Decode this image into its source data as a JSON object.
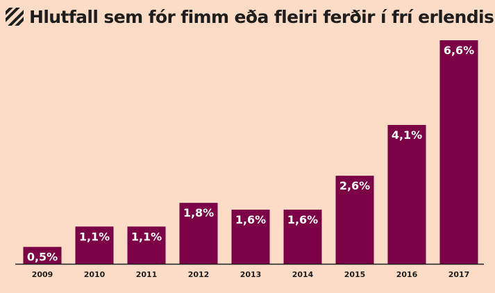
{
  "title": "Hlutfall sem fór fimm eða fleiri ferðir í frí erlendis",
  "colors": {
    "background": "#fcdcc6",
    "bar": "#7b0046",
    "bar_label": "#ffffff",
    "text": "#1e1e1e",
    "axis": "#1e1e1e"
  },
  "icon": "hatched-square-icon",
  "chart_data": {
    "type": "bar",
    "title": "Hlutfall sem fór fimm eða fleiri ferðir í frí erlendis",
    "categories": [
      "2009",
      "2010",
      "2011",
      "2012",
      "2013",
      "2014",
      "2015",
      "2016",
      "2017"
    ],
    "values": [
      0.5,
      1.1,
      1.1,
      1.8,
      1.6,
      1.6,
      2.6,
      4.1,
      6.6
    ],
    "data_labels": [
      "0,5%",
      "1,1%",
      "1,1%",
      "1,8%",
      "1,6%",
      "1,6%",
      "2,6%",
      "4,1%",
      "6,6%"
    ],
    "unit": "%",
    "xlabel": "",
    "ylabel": "",
    "ylim": [
      0,
      6.6
    ],
    "grid": false,
    "legend": "none"
  }
}
